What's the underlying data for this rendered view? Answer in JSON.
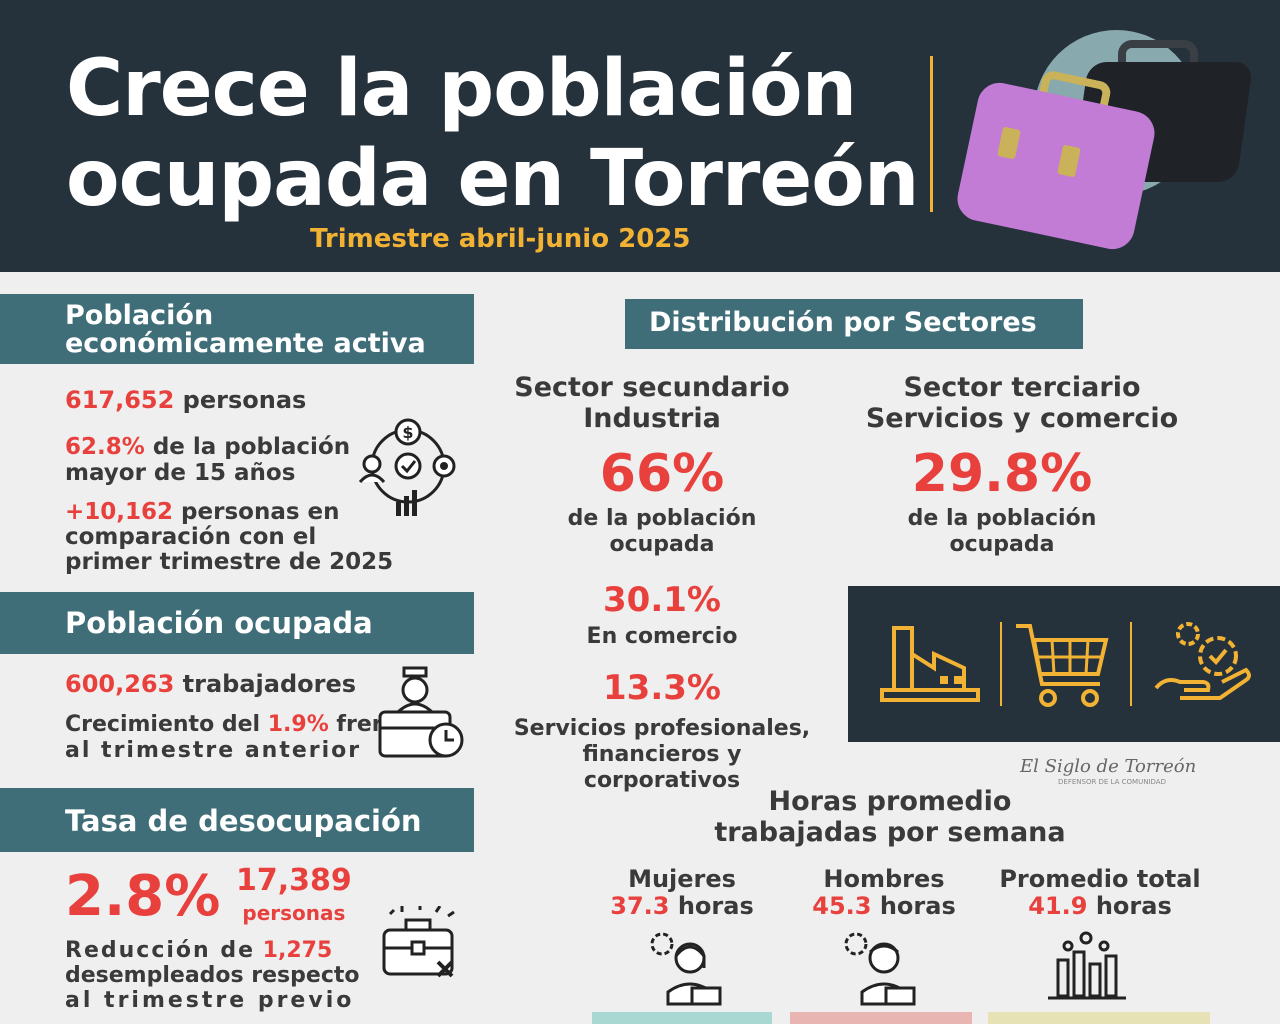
{
  "header": {
    "title_line1": "Crece la población",
    "title_line2": "ocupada en Torreón",
    "subtitle": "Trimestre abril-junio 2025"
  },
  "pea": {
    "title_line1": "Población",
    "title_line2": "económicamente activa",
    "people_value": "617,652",
    "people_label": "personas",
    "pct_value": "62.8%",
    "pct_label_1": "de la población",
    "pct_label_2": "mayor de 15 años",
    "diff_value": "+10,162",
    "diff_label_1": "personas en",
    "diff_label_2": "comparación con el",
    "diff_label_3": "primer trimestre de",
    "diff_year": "2025"
  },
  "ocupada": {
    "title": "Población ocupada",
    "workers_value": "600,263",
    "workers_label": "trabajadores",
    "growth_prefix": "Crecimiento del",
    "growth_value": "1.9%",
    "growth_suffix": "frente",
    "growth_line2": "al trimestre anterior"
  },
  "desocupacion": {
    "title": "Tasa de desocupación",
    "rate": "2.8%",
    "people_value": "17,389",
    "people_label": "personas",
    "reduction_prefix": "Reducción de",
    "reduction_value": "1,275",
    "reduction_line2": "desempleados respecto",
    "reduction_line3": "al trimestre previo"
  },
  "sectores": {
    "title": "Distribución por Sectores",
    "secundario_line1": "Sector secundario",
    "secundario_line2": "Industria",
    "secundario_pct": "66%",
    "secundario_desc1": "de la población",
    "secundario_desc2": "ocupada",
    "terciario_line1": "Sector terciario",
    "terciario_line2": "Servicios y comercio",
    "terciario_pct": "29.8%",
    "terciario_desc1": "de la población",
    "terciario_desc2": "ocupada",
    "comercio_pct": "30.1%",
    "comercio_label": "En comercio",
    "servicios_pct": "13.3%",
    "servicios_label1": "Servicios profesionales,",
    "servicios_label2": "financieros y corporativos"
  },
  "newspaper": {
    "name": "El Siglo de Torreón",
    "tagline": "DEFENSOR DE LA COMUNIDAD"
  },
  "horas": {
    "title_line1": "Horas promedio",
    "title_line2": "trabajadas por semana",
    "mujeres_label": "Mujeres",
    "mujeres_value": "37.3",
    "hombres_label": "Hombres",
    "hombres_value": "45.3",
    "total_label": "Promedio total",
    "total_value": "41.9",
    "unit": "horas"
  },
  "colors": {
    "dark": "#26323b",
    "teal": "#3f6e78",
    "accent_red": "#e8413d",
    "accent_yellow": "#f2b233"
  },
  "icons": {
    "pea_icon": "network-people-money-icon",
    "ocupada_icon": "worker-briefcase-clock-icon",
    "desocupacion_icon": "broken-briefcase-icon",
    "industry_icon": "factory-icon",
    "commerce_icon": "shopping-cart-icon",
    "services_icon": "hand-gear-icon",
    "women_icon": "woman-worker-icon",
    "men_icon": "man-worker-icon",
    "total_icon": "bar-chart-icon"
  }
}
